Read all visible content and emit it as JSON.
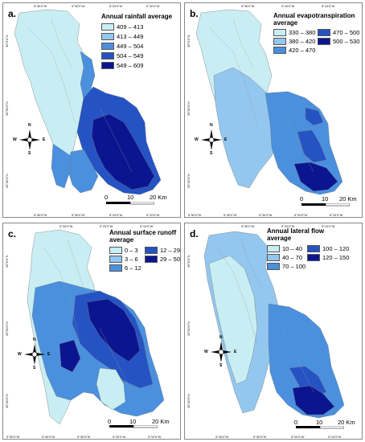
{
  "colors": {
    "c1": "#c8eef4",
    "c2": "#93c7ef",
    "c3": "#4a90de",
    "c4": "#2553c3",
    "c5": "#0c1590"
  },
  "icons": [
    "compass-rose-icon",
    "scale-bar-icon"
  ],
  "panels": [
    {
      "label": "a.",
      "legend_title": "Annual rainfall average",
      "classes": [
        "409 – 413",
        "413 – 449",
        "449 – 504",
        "504 – 549",
        "549 – 609"
      ],
      "scale": {
        "t0": "0",
        "t1": "10",
        "t2": "20 Km"
      },
      "x_ticks": [
        "5°40'0\"W",
        "5°30'0\"W",
        "5°20'0\"W",
        "5°10'0\"W"
      ],
      "top_ticks": [
        "5°40'0\"W",
        "5°30'0\"W",
        "5°20'0\"W",
        "5°10'0\"W"
      ],
      "y_ticks": [
        "36°0'0\"N",
        "35°50'0\"N",
        "35°40'0\"N"
      ]
    },
    {
      "label": "b.",
      "legend_title_1": "Annual evapotranspiration",
      "legend_title_2": "average",
      "classes": [
        "330 – 380",
        "380 – 420",
        "420 – 470",
        "470 – 500",
        "500 – 530"
      ],
      "scale": {
        "t0": "0",
        "t1": "10",
        "t2": "20 Km"
      },
      "x_ticks": [
        "5°50'0\"W",
        "5°40'0\"W",
        "5°30'0\"W",
        "5°20'0\"W",
        "5°10'0\"W"
      ],
      "top_ticks": [
        "5°30'0\"W",
        "5°20'0\"W",
        "5°10'0\"W"
      ],
      "y_ticks": [
        "36°0'0\"N",
        "35°50'0\"N",
        "35°40'0\"N"
      ]
    },
    {
      "label": "c.",
      "legend_title_1": "Annual surface runoff",
      "legend_title_2": "average",
      "classes": [
        "0 – 3",
        "3 – 6",
        "6 – 12",
        "12 – 29",
        "29 – 50"
      ],
      "scale": {
        "t0": "0",
        "t1": "10",
        "t2": "20 Km"
      },
      "x_ticks": [
        "5°50'0\"W",
        "5°40'0\"W",
        "5°30'0\"W",
        "5°20'0\"W",
        "5°10'0\"W"
      ],
      "top_ticks": [
        "5°30'0\"W",
        "5°20'0\"W",
        "5°10'0\"W"
      ],
      "y_ticks": [
        "36°0'0\"N",
        "35°50'0\"N",
        "35°40'0\"N"
      ]
    },
    {
      "label": "d.",
      "legend_title_1": "Annual lateral flow",
      "legend_title_2": "average",
      "classes": [
        "10 – 40",
        "40 – 70",
        "70 – 100",
        "100 – 120",
        "120 – 150"
      ],
      "scale": {
        "t0": "0",
        "t1": "10",
        "t2": "20 Km"
      },
      "x_ticks": [
        "5°40'0\"W",
        "5°30'0\"W",
        "5°20'0\"W",
        "5°10'0\"W"
      ],
      "top_ticks": [
        "5°30'0\"W",
        "5°20'0\"W",
        "5°10'0\"W"
      ],
      "y_ticks": [
        "36°0'0\"N",
        "35°50'0\"N",
        "35°40'0\"N"
      ]
    }
  ],
  "compass": {
    "n": "N",
    "s": "S",
    "e": "E",
    "w": "W"
  }
}
